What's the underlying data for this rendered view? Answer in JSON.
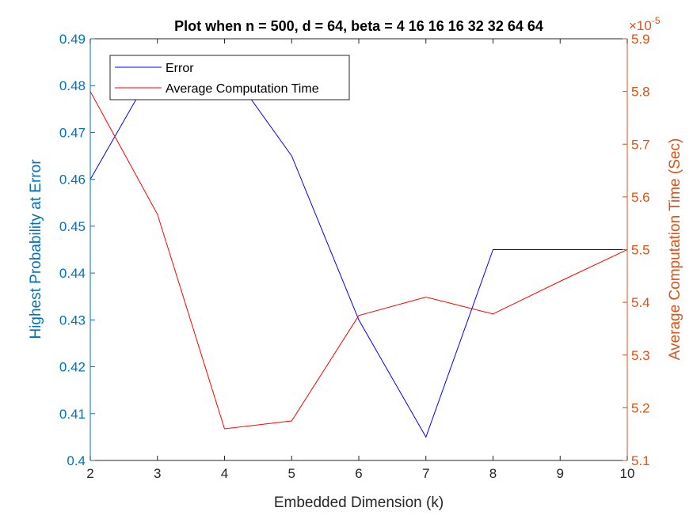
{
  "chart_data": {
    "type": "line",
    "title": "Plot when n = 500, d = 64, beta = 4  16  16  16  32  32  64  64",
    "xlabel": "Embedded Dimension (k)",
    "ylabel_left": "Highest Probability at Error",
    "ylabel_right": "Average Computation Time (Sec)",
    "right_exponent": {
      "base": "×10",
      "power": "-5"
    },
    "x": [
      2,
      3,
      4,
      5,
      6,
      7,
      8,
      9,
      10
    ],
    "xlim": [
      2,
      10
    ],
    "ylim_left": [
      0.4,
      0.49
    ],
    "ylim_right": [
      5.1,
      5.9
    ],
    "xticks": [
      "2",
      "3",
      "4",
      "5",
      "6",
      "7",
      "8",
      "9",
      "10"
    ],
    "yticks_left": [
      "0.4",
      "0.41",
      "0.42",
      "0.43",
      "0.44",
      "0.45",
      "0.46",
      "0.47",
      "0.48",
      "0.49"
    ],
    "yticks_right": [
      "5.1",
      "5.2",
      "5.3",
      "5.4",
      "5.5",
      "5.6",
      "5.7",
      "5.8",
      "5.9"
    ],
    "series": [
      {
        "name": "Error",
        "axis": "left",
        "color": "#0000ff",
        "values": [
          0.46,
          0.485,
          0.485,
          0.465,
          0.43,
          0.405,
          0.445,
          0.445,
          0.445
        ]
      },
      {
        "name": "Average Computation Time",
        "axis": "right",
        "color": "#ff0000",
        "values": [
          5.8,
          5.567,
          5.16,
          5.175,
          5.375,
          5.41,
          5.378,
          5.44,
          5.5
        ]
      }
    ],
    "left_axis_color": "#0072bd",
    "right_axis_color": "#d95319",
    "legend_position": "top-left",
    "grid": false
  }
}
